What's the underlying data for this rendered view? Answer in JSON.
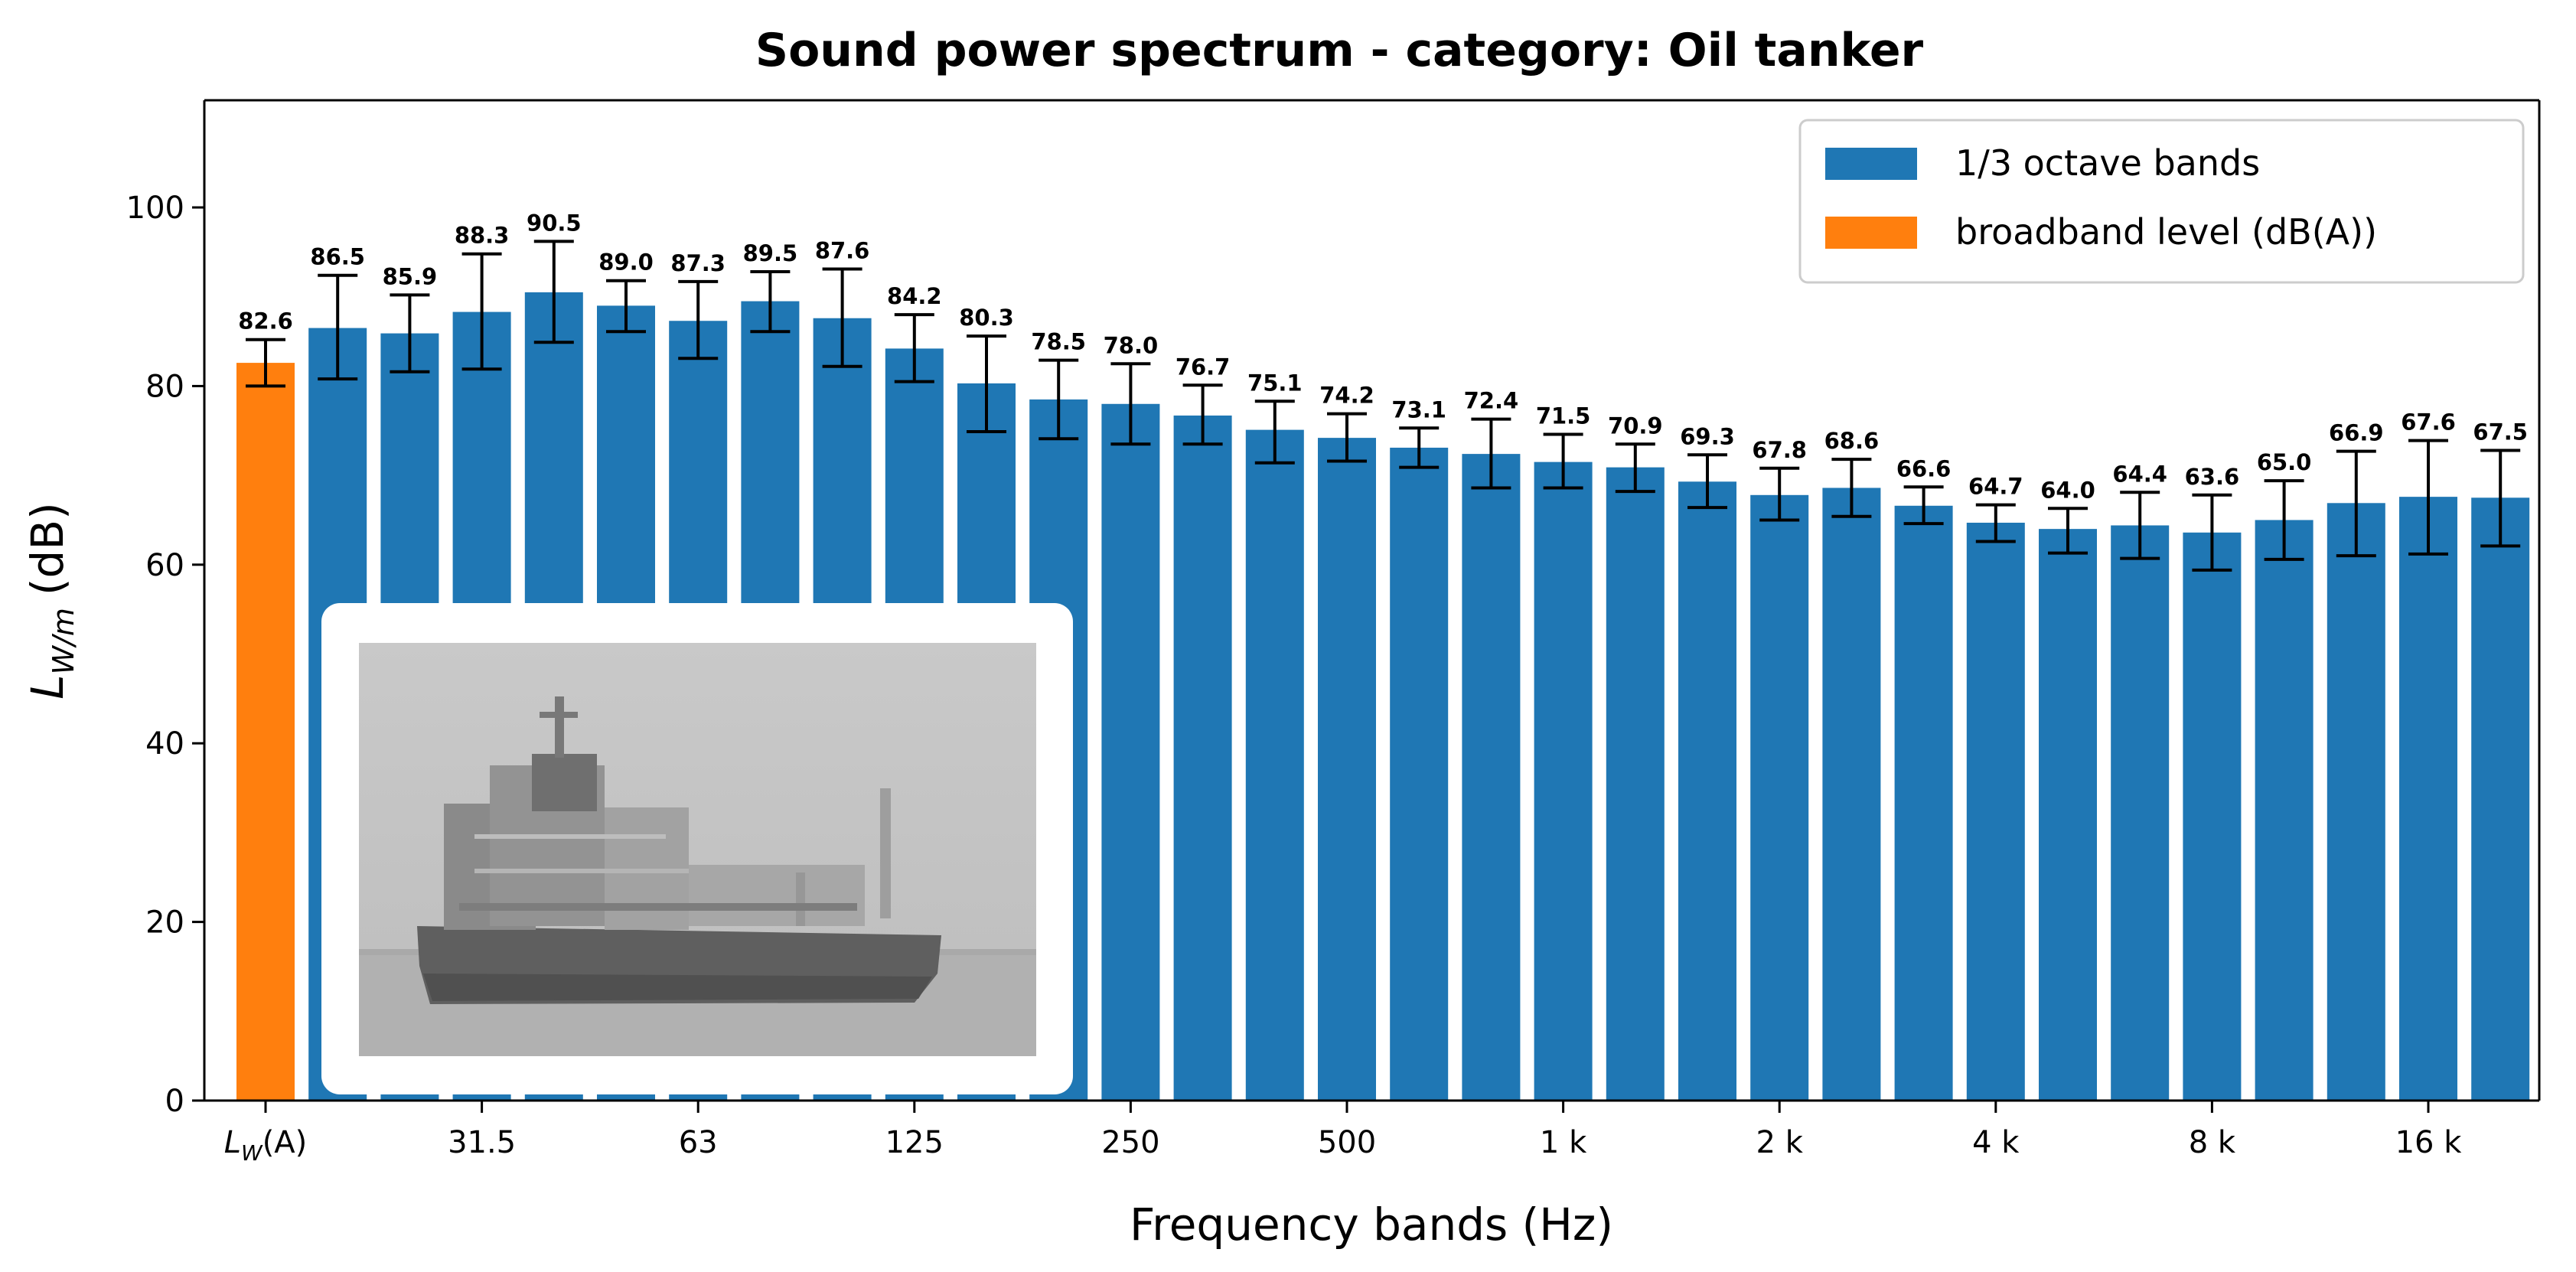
{
  "chart_data": {
    "type": "bar",
    "title": "Sound power spectrum - category: Oil tanker",
    "xlabel": "Frequency bands (Hz)",
    "ylabel": "L",
    "ylabel_subscript": "W/m",
    "ylabel_unit": "(dB)",
    "ylim": [
      0,
      112
    ],
    "yticks": [
      0,
      20,
      40,
      60,
      80,
      100
    ],
    "grid": false,
    "legend": {
      "position": "top-right",
      "entries": [
        {
          "label": "1/3 octave bands",
          "color": "#1f77b4"
        },
        {
          "label": "broadband level (dB(A))",
          "color": "#ff7f0e"
        }
      ]
    },
    "colors": {
      "band": "#1f77b4",
      "broadband": "#ff7f0e"
    },
    "xtick_labels": [
      {
        "index": 0,
        "main": "L",
        "sub": "W",
        "suffix": "(A)"
      },
      {
        "index": 3,
        "text": "31.5"
      },
      {
        "index": 6,
        "text": "63"
      },
      {
        "index": 9,
        "text": "125"
      },
      {
        "index": 12,
        "text": "250"
      },
      {
        "index": 15,
        "text": "500"
      },
      {
        "index": 18,
        "text": "1 k"
      },
      {
        "index": 21,
        "text": "2 k"
      },
      {
        "index": 24,
        "text": "4 k"
      },
      {
        "index": 27,
        "text": "8 k"
      },
      {
        "index": 30,
        "text": "16 k"
      }
    ],
    "bars": [
      {
        "value": 82.6,
        "label": "82.6",
        "err": [
          80.0,
          85.2
        ],
        "kind": "broadband"
      },
      {
        "value": 86.5,
        "label": "86.5",
        "err": [
          80.8,
          92.4
        ],
        "kind": "band"
      },
      {
        "value": 85.9,
        "label": "85.9",
        "err": [
          81.6,
          90.2
        ],
        "kind": "band"
      },
      {
        "value": 88.3,
        "label": "88.3",
        "err": [
          81.9,
          94.8
        ],
        "kind": "band"
      },
      {
        "value": 90.5,
        "label": "90.5",
        "err": [
          84.9,
          96.2
        ],
        "kind": "band"
      },
      {
        "value": 89.0,
        "label": "89.0",
        "err": [
          86.1,
          91.8
        ],
        "kind": "band"
      },
      {
        "value": 87.3,
        "label": "87.3",
        "err": [
          83.1,
          91.7
        ],
        "kind": "band"
      },
      {
        "value": 89.5,
        "label": "89.5",
        "err": [
          86.1,
          92.8
        ],
        "kind": "band"
      },
      {
        "value": 87.6,
        "label": "87.6",
        "err": [
          82.2,
          93.1
        ],
        "kind": "band"
      },
      {
        "value": 84.2,
        "label": "84.2",
        "err": [
          80.5,
          88.0
        ],
        "kind": "band"
      },
      {
        "value": 80.3,
        "label": "80.3",
        "err": [
          74.9,
          85.6
        ],
        "kind": "band"
      },
      {
        "value": 78.5,
        "label": "78.5",
        "err": [
          74.1,
          82.9
        ],
        "kind": "band"
      },
      {
        "value": 78.0,
        "label": "78.0",
        "err": [
          73.5,
          82.5
        ],
        "kind": "band"
      },
      {
        "value": 76.7,
        "label": "76.7",
        "err": [
          73.5,
          80.1
        ],
        "kind": "band"
      },
      {
        "value": 75.1,
        "label": "75.1",
        "err": [
          71.4,
          78.3
        ],
        "kind": "band"
      },
      {
        "value": 74.2,
        "label": "74.2",
        "err": [
          71.6,
          76.9
        ],
        "kind": "band"
      },
      {
        "value": 73.1,
        "label": "73.1",
        "err": [
          70.9,
          75.3
        ],
        "kind": "band"
      },
      {
        "value": 72.4,
        "label": "72.4",
        "err": [
          68.6,
          76.3
        ],
        "kind": "band"
      },
      {
        "value": 71.5,
        "label": "71.5",
        "err": [
          68.6,
          74.6
        ],
        "kind": "band"
      },
      {
        "value": 70.9,
        "label": "70.9",
        "err": [
          68.2,
          73.5
        ],
        "kind": "band"
      },
      {
        "value": 69.3,
        "label": "69.3",
        "err": [
          66.4,
          72.3
        ],
        "kind": "band"
      },
      {
        "value": 67.8,
        "label": "67.8",
        "err": [
          65.0,
          70.8
        ],
        "kind": "band"
      },
      {
        "value": 68.6,
        "label": "68.6",
        "err": [
          65.4,
          71.8
        ],
        "kind": "band"
      },
      {
        "value": 66.6,
        "label": "66.6",
        "err": [
          64.6,
          68.7
        ],
        "kind": "band"
      },
      {
        "value": 64.7,
        "label": "64.7",
        "err": [
          62.6,
          66.7
        ],
        "kind": "band"
      },
      {
        "value": 64.0,
        "label": "64.0",
        "err": [
          61.3,
          66.3
        ],
        "kind": "band"
      },
      {
        "value": 64.4,
        "label": "64.4",
        "err": [
          60.7,
          68.1
        ],
        "kind": "band"
      },
      {
        "value": 63.6,
        "label": "63.6",
        "err": [
          59.4,
          67.8
        ],
        "kind": "band"
      },
      {
        "value": 65.0,
        "label": "65.0",
        "err": [
          60.6,
          69.4
        ],
        "kind": "band"
      },
      {
        "value": 66.9,
        "label": "66.9",
        "err": [
          61.0,
          72.7
        ],
        "kind": "band"
      },
      {
        "value": 67.6,
        "label": "67.6",
        "err": [
          61.2,
          73.9
        ],
        "kind": "band"
      },
      {
        "value": 67.5,
        "label": "67.5",
        "err": [
          62.1,
          72.8
        ],
        "kind": "band"
      }
    ],
    "inset_image": {
      "description_icon": "ship-photo",
      "present": true
    }
  }
}
